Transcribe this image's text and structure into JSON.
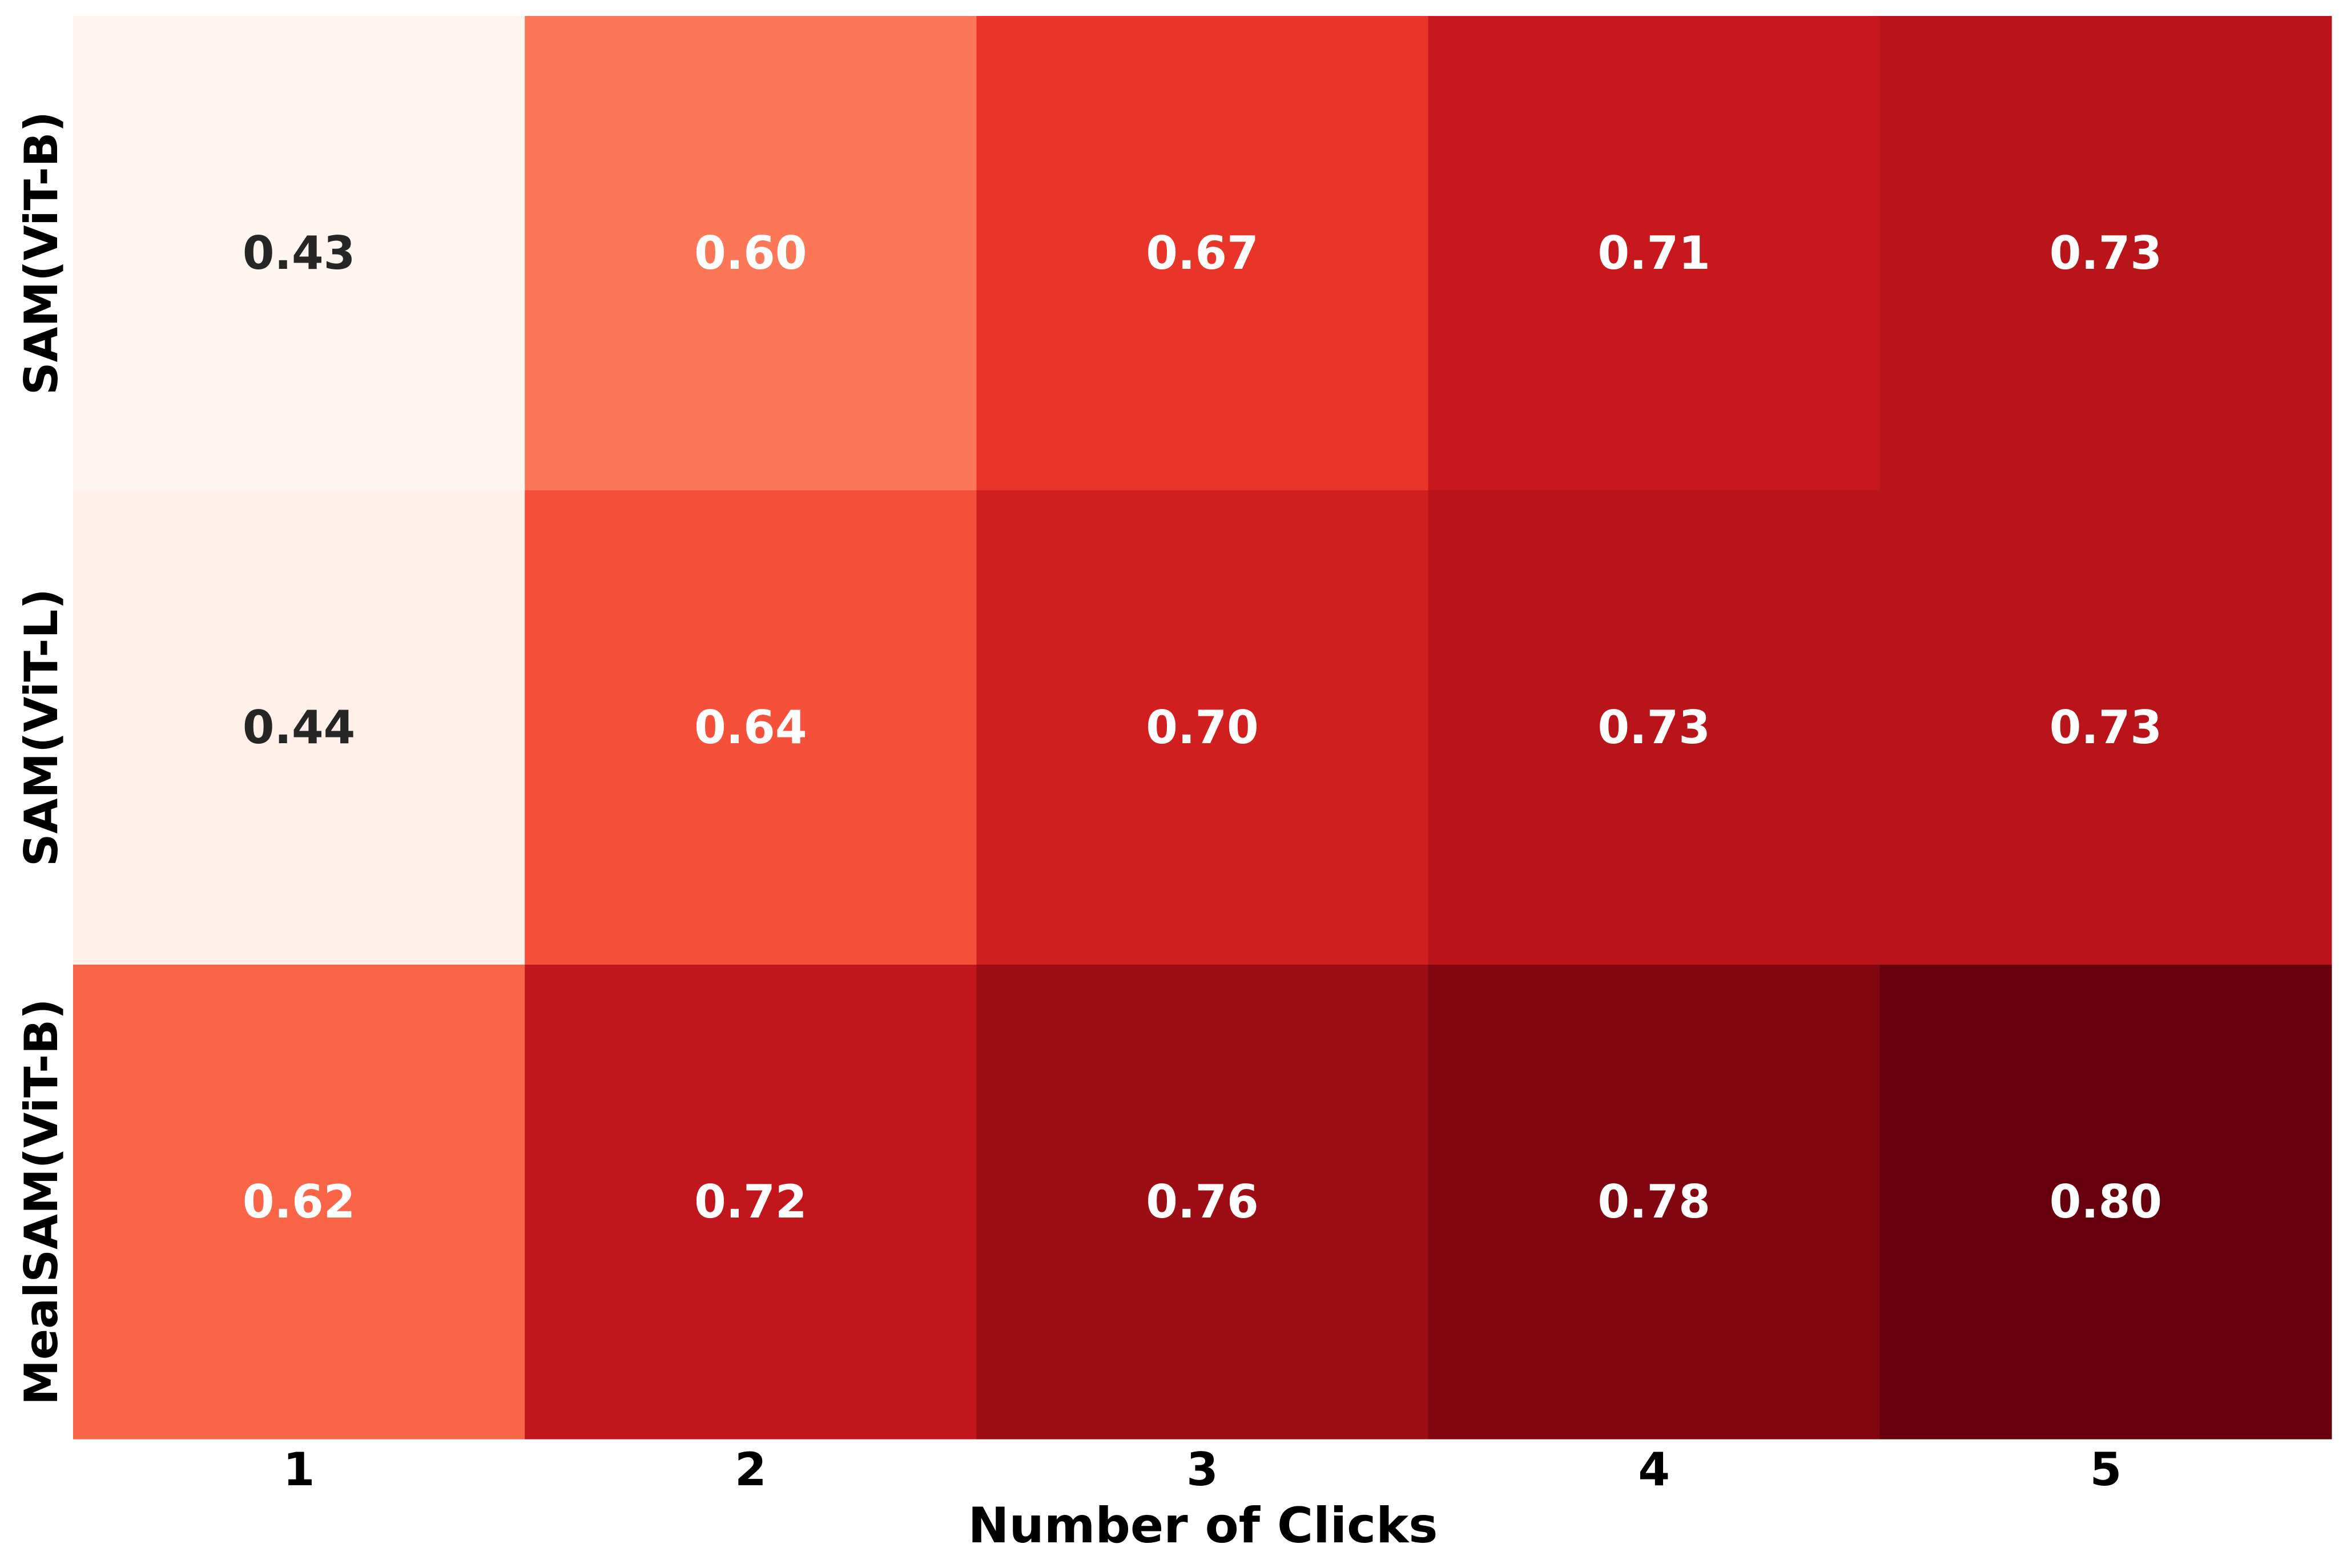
{
  "chart_data": {
    "type": "heatmap",
    "title": "",
    "xlabel": "Number of Clicks",
    "ylabel": "",
    "x_categories": [
      "1",
      "2",
      "3",
      "4",
      "5"
    ],
    "y_categories": [
      "SAM(ViT-B)",
      "SAM(ViT-L)",
      "MealSAM(ViT-B)"
    ],
    "values": [
      [
        0.43,
        0.6,
        0.67,
        0.71,
        0.73
      ],
      [
        0.44,
        0.64,
        0.7,
        0.73,
        0.73
      ],
      [
        0.62,
        0.72,
        0.76,
        0.78,
        0.8
      ]
    ],
    "value_labels": [
      [
        "0.43",
        "0.60",
        "0.67",
        "0.71",
        "0.73"
      ],
      [
        "0.44",
        "0.64",
        "0.70",
        "0.73",
        "0.73"
      ],
      [
        "0.62",
        "0.72",
        "0.76",
        "0.78",
        "0.80"
      ]
    ],
    "colormap": "Reds",
    "vmin": 0.43,
    "vmax": 0.8,
    "colorbar": false,
    "grid": false
  },
  "colors": {
    "dark_text": "#262626",
    "light_text": "#ffffff"
  }
}
